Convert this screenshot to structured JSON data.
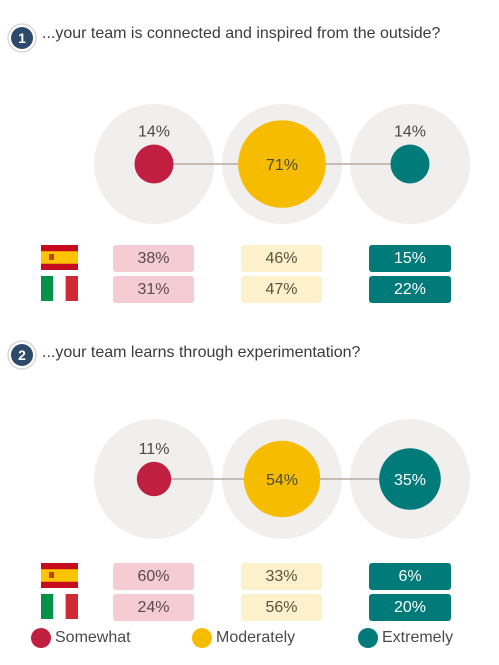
{
  "colors": {
    "somewhat": "#c01f40",
    "moderately": "#f6bd00",
    "extremely": "#007b7a",
    "bubble_bg": "#f1efee",
    "connector": "#b6aaa4",
    "badge": "#2e4a6b"
  },
  "legend": [
    {
      "key": "somewhat",
      "label": "Somewhat"
    },
    {
      "key": "moderately",
      "label": "Moderately"
    },
    {
      "key": "extremely",
      "label": "Extremely"
    }
  ],
  "chart_data": [
    {
      "type": "bubble",
      "number": "1",
      "question": "...your team is connected and inspired from the outside?",
      "overall": {
        "somewhat": 14,
        "moderately": 71,
        "extremely": 14
      },
      "overall_labels": {
        "somewhat": "14%",
        "moderately": "71%",
        "extremely": "14%"
      },
      "countries": [
        {
          "flag": "spain-flag",
          "values": {
            "somewhat": 38,
            "moderately": 46,
            "extremely": 15
          },
          "labels": {
            "somewhat": "38%",
            "moderately": "46%",
            "extremely": "15%"
          }
        },
        {
          "flag": "italy-flag",
          "values": {
            "somewhat": 31,
            "moderately": 47,
            "extremely": 22
          },
          "labels": {
            "somewhat": "31%",
            "moderately": "47%",
            "extremely": "22%"
          }
        }
      ]
    },
    {
      "type": "bubble",
      "number": "2",
      "question": "...your team learns through experimentation?",
      "overall": {
        "somewhat": 11,
        "moderately": 54,
        "extremely": 35
      },
      "overall_labels": {
        "somewhat": "11%",
        "moderately": "54%",
        "extremely": "35%"
      },
      "countries": [
        {
          "flag": "spain-flag",
          "values": {
            "somewhat": 60,
            "moderately": 33,
            "extremely": 6
          },
          "labels": {
            "somewhat": "60%",
            "moderately": "33%",
            "extremely": "6%"
          }
        },
        {
          "flag": "italy-flag",
          "values": {
            "somewhat": 24,
            "moderately": 56,
            "extremely": 20
          },
          "labels": {
            "somewhat": "24%",
            "moderately": "56%",
            "extremely": "20%"
          }
        }
      ]
    }
  ]
}
